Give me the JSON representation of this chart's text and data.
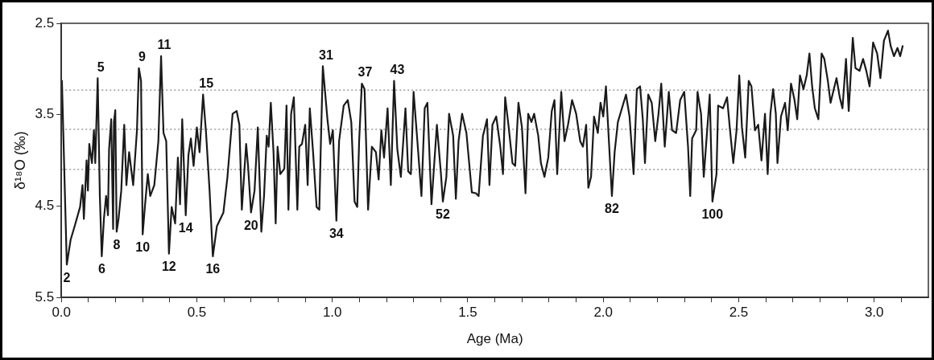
{
  "chart_data": {
    "type": "line",
    "xlabel": "Age (Ma)",
    "ylabel": "δ¹⁸O (‰)",
    "xlim": [
      0,
      3.2
    ],
    "ylim": [
      5.5,
      2.5
    ],
    "xticks": [
      {
        "value": 0,
        "label": "0.0"
      },
      {
        "value": 0.1,
        "label": null
      },
      {
        "value": 0.2,
        "label": null
      },
      {
        "value": 0.3,
        "label": null
      },
      {
        "value": 0.4,
        "label": null
      },
      {
        "value": 0.5,
        "label": "0.5"
      },
      {
        "value": 0.6,
        "label": null
      },
      {
        "value": 0.7,
        "label": null
      },
      {
        "value": 0.8,
        "label": null
      },
      {
        "value": 0.9,
        "label": null
      },
      {
        "value": 1,
        "label": "1.0"
      },
      {
        "value": 1.1,
        "label": null
      },
      {
        "value": 1.2,
        "label": null
      },
      {
        "value": 1.3,
        "label": null
      },
      {
        "value": 1.4,
        "label": null
      },
      {
        "value": 1.5,
        "label": "1.5"
      },
      {
        "value": 1.6,
        "label": null
      },
      {
        "value": 1.7,
        "label": null
      },
      {
        "value": 1.8,
        "label": null
      },
      {
        "value": 1.9,
        "label": null
      },
      {
        "value": 2,
        "label": "2.0"
      },
      {
        "value": 2.1,
        "label": null
      },
      {
        "value": 2.2,
        "label": null
      },
      {
        "value": 2.3,
        "label": null
      },
      {
        "value": 2.4,
        "label": null
      },
      {
        "value": 2.5,
        "label": "2.5"
      },
      {
        "value": 2.6,
        "label": null
      },
      {
        "value": 2.7,
        "label": null
      },
      {
        "value": 2.8,
        "label": null
      },
      {
        "value": 2.9,
        "label": null
      },
      {
        "value": 3,
        "label": "3.0"
      },
      {
        "value": 3.1,
        "label": null
      }
    ],
    "yticks": [
      2.5,
      3.5,
      4.5,
      5.5
    ],
    "grid": false,
    "legend": false,
    "marker": "none",
    "line_style": "solid",
    "ref_lines": [
      {
        "axis": "y",
        "value": 3.23,
        "line_style": "dotted",
        "color": "#888888"
      },
      {
        "axis": "y",
        "value": 3.66,
        "line_style": "dotted",
        "color": "#888888"
      },
      {
        "axis": "y",
        "value": 4.1,
        "line_style": "dotted",
        "color": "#888888"
      }
    ],
    "series": [
      {
        "color": "#1a1a1a",
        "x": [
          0.002,
          0.02,
          0.034,
          0.049,
          0.069,
          0.078,
          0.083,
          0.093,
          0.098,
          0.103,
          0.113,
          0.12,
          0.125,
          0.134,
          0.142,
          0.149,
          0.157,
          0.165,
          0.172,
          0.176,
          0.184,
          0.191,
          0.194,
          0.199,
          0.204,
          0.211,
          0.221,
          0.232,
          0.24,
          0.25,
          0.265,
          0.279,
          0.286,
          0.294,
          0.3,
          0.309,
          0.319,
          0.328,
          0.343,
          0.358,
          0.368,
          0.377,
          0.387,
          0.397,
          0.407,
          0.42,
          0.43,
          0.438,
          0.446,
          0.459,
          0.469,
          0.478,
          0.488,
          0.5,
          0.51,
          0.523,
          0.534,
          0.547,
          0.559,
          0.574,
          0.598,
          0.613,
          0.632,
          0.647,
          0.657,
          0.666,
          0.682,
          0.689,
          0.7,
          0.713,
          0.725,
          0.738,
          0.748,
          0.758,
          0.765,
          0.773,
          0.783,
          0.791,
          0.798,
          0.808,
          0.823,
          0.831,
          0.838,
          0.848,
          0.858,
          0.871,
          0.878,
          0.888,
          0.9,
          0.909,
          0.917,
          0.929,
          0.942,
          0.952,
          0.957,
          0.965,
          0.982,
          0.992,
          1.002,
          1.015,
          1.025,
          1.042,
          1.057,
          1.07,
          1.082,
          1.092,
          1.099,
          1.109,
          1.119,
          1.132,
          1.146,
          1.161,
          1.171,
          1.181,
          1.191,
          1.204,
          1.216,
          1.228,
          1.24,
          1.253,
          1.27,
          1.28,
          1.29,
          1.3,
          1.314,
          1.329,
          1.341,
          1.351,
          1.366,
          1.386,
          1.401,
          1.408,
          1.421,
          1.431,
          1.446,
          1.456,
          1.466,
          1.479,
          1.495,
          1.515,
          1.53,
          1.54,
          1.556,
          1.571,
          1.58,
          1.591,
          1.605,
          1.62,
          1.63,
          1.638,
          1.65,
          1.665,
          1.675,
          1.687,
          1.7,
          1.713,
          1.723,
          1.735,
          1.745,
          1.76,
          1.77,
          1.783,
          1.797,
          1.81,
          1.82,
          1.83,
          1.845,
          1.857,
          1.87,
          1.885,
          1.9,
          1.915,
          1.925,
          1.937,
          1.945,
          1.955,
          1.966,
          1.98,
          1.99,
          2.0,
          2.01,
          2.022,
          2.032,
          2.042,
          2.054,
          2.069,
          2.084,
          2.097,
          2.112,
          2.124,
          2.136,
          2.146,
          2.154,
          2.166,
          2.179,
          2.192,
          2.204,
          2.214,
          2.227,
          2.242,
          2.254,
          2.269,
          2.284,
          2.299,
          2.313,
          2.321,
          2.328,
          2.343,
          2.348,
          2.361,
          2.371,
          2.388,
          2.393,
          2.403,
          2.418,
          2.424,
          2.442,
          2.457,
          2.467,
          2.48,
          2.492,
          2.502,
          2.512,
          2.524,
          2.537,
          2.547,
          2.56,
          2.572,
          2.584,
          2.597,
          2.607,
          2.617,
          2.627,
          2.637,
          2.643,
          2.656,
          2.671,
          2.681,
          2.693,
          2.706,
          2.716,
          2.726,
          2.739,
          2.751,
          2.761,
          2.771,
          2.781,
          2.794,
          2.806,
          2.816,
          2.829,
          2.839,
          2.851,
          2.861,
          2.873,
          2.883,
          2.896,
          2.906,
          2.921,
          2.931,
          2.946,
          2.959,
          2.971,
          2.983,
          2.996,
          3.011,
          3.023,
          3.036,
          3.051,
          3.061,
          3.073,
          3.086,
          3.096,
          3.105
        ],
        "values": [
          3.13,
          5.14,
          4.87,
          4.72,
          4.51,
          4.27,
          4.64,
          4.0,
          4.33,
          3.82,
          4.03,
          3.67,
          4.03,
          3.1,
          4.39,
          5.05,
          4.64,
          4.39,
          4.6,
          3.88,
          3.55,
          4.75,
          3.58,
          3.45,
          4.78,
          4.64,
          4.33,
          3.61,
          4.27,
          3.91,
          4.27,
          3.67,
          2.99,
          3.13,
          4.81,
          4.48,
          4.15,
          4.39,
          4.27,
          3.79,
          2.86,
          3.7,
          3.79,
          5.02,
          4.51,
          4.69,
          3.97,
          4.48,
          3.55,
          4.6,
          3.94,
          3.76,
          4.06,
          3.64,
          3.91,
          3.28,
          3.7,
          4.33,
          5.05,
          4.72,
          4.57,
          4.18,
          3.49,
          3.46,
          3.61,
          4.54,
          3.82,
          4.06,
          4.57,
          4.33,
          3.64,
          4.78,
          4.39,
          3.73,
          3.85,
          3.37,
          3.91,
          4.69,
          3.85,
          4.15,
          4.09,
          3.4,
          4.54,
          3.49,
          3.31,
          4.54,
          3.85,
          3.82,
          3.61,
          4.27,
          3.43,
          3.91,
          4.51,
          4.54,
          3.91,
          2.97,
          3.55,
          3.82,
          3.67,
          4.66,
          3.79,
          3.4,
          3.34,
          3.58,
          4.45,
          4.51,
          3.79,
          3.16,
          3.22,
          4.54,
          3.85,
          3.91,
          4.21,
          3.67,
          3.97,
          3.43,
          4.27,
          3.13,
          3.88,
          4.18,
          3.43,
          4.12,
          4.15,
          3.25,
          3.79,
          4.39,
          3.43,
          3.37,
          4.48,
          3.61,
          4.15,
          4.45,
          4.18,
          3.49,
          3.73,
          4.42,
          3.79,
          3.49,
          3.7,
          4.35,
          4.36,
          4.39,
          3.73,
          3.55,
          4.27,
          3.61,
          3.52,
          3.85,
          4.15,
          3.31,
          3.61,
          4.03,
          4.06,
          3.37,
          3.64,
          4.36,
          3.49,
          3.58,
          3.49,
          3.73,
          4.03,
          4.18,
          3.97,
          3.46,
          3.34,
          4.15,
          3.25,
          3.79,
          3.61,
          3.34,
          3.49,
          3.79,
          3.85,
          3.61,
          4.3,
          4.18,
          3.52,
          3.7,
          3.37,
          3.52,
          3.19,
          3.85,
          4.39,
          3.91,
          3.58,
          3.43,
          3.28,
          3.52,
          4.15,
          3.22,
          3.19,
          3.55,
          4.03,
          3.28,
          3.37,
          3.79,
          3.49,
          3.16,
          3.85,
          3.25,
          3.67,
          3.7,
          3.34,
          3.25,
          3.85,
          4.39,
          3.76,
          3.67,
          3.25,
          3.49,
          4.18,
          3.49,
          3.28,
          4.45,
          4.15,
          3.4,
          3.43,
          3.31,
          3.64,
          4.03,
          3.67,
          3.07,
          3.64,
          3.97,
          3.13,
          3.19,
          3.67,
          3.61,
          4.0,
          3.49,
          4.15,
          3.49,
          3.22,
          3.49,
          4.03,
          3.52,
          3.37,
          3.67,
          3.16,
          3.34,
          3.55,
          3.07,
          3.22,
          3.07,
          2.83,
          3.19,
          3.43,
          3.55,
          2.83,
          2.89,
          3.13,
          3.37,
          3.22,
          3.1,
          3.31,
          3.43,
          2.89,
          3.46,
          2.66,
          2.99,
          3.02,
          2.89,
          3.02,
          3.19,
          2.71,
          2.83,
          3.1,
          2.69,
          2.58,
          2.75,
          2.86,
          2.77,
          2.86,
          2.75
        ]
      }
    ],
    "annotations": [
      {
        "text": "2",
        "x": 0.02,
        "y": 5.14
      },
      {
        "text": "5",
        "x": 0.134,
        "y": 3.1
      },
      {
        "text": "6",
        "x": 0.149,
        "y": 5.05
      },
      {
        "text": "8",
        "x": 0.204,
        "y": 4.78
      },
      {
        "text": "9",
        "x": 0.286,
        "y": 2.99
      },
      {
        "text": "10",
        "x": 0.3,
        "y": 4.81
      },
      {
        "text": "11",
        "x": 0.368,
        "y": 2.86
      },
      {
        "text": "12",
        "x": 0.397,
        "y": 5.02
      },
      {
        "text": "14",
        "x": 0.459,
        "y": 4.6
      },
      {
        "text": "15",
        "x": 0.523,
        "y": 3.28
      },
      {
        "text": "16",
        "x": 0.559,
        "y": 5.05
      },
      {
        "text": "20",
        "x": 0.7,
        "y": 4.57
      },
      {
        "text": "31",
        "x": 0.965,
        "y": 2.97
      },
      {
        "text": "34",
        "x": 1.015,
        "y": 4.66
      },
      {
        "text": "37",
        "x": 1.109,
        "y": 3.16
      },
      {
        "text": "43",
        "x": 1.228,
        "y": 3.13
      },
      {
        "text": "52",
        "x": 1.408,
        "y": 4.45
      },
      {
        "text": "82",
        "x": 2.032,
        "y": 4.39
      },
      {
        "text": "100",
        "x": 2.403,
        "y": 4.45
      }
    ]
  }
}
